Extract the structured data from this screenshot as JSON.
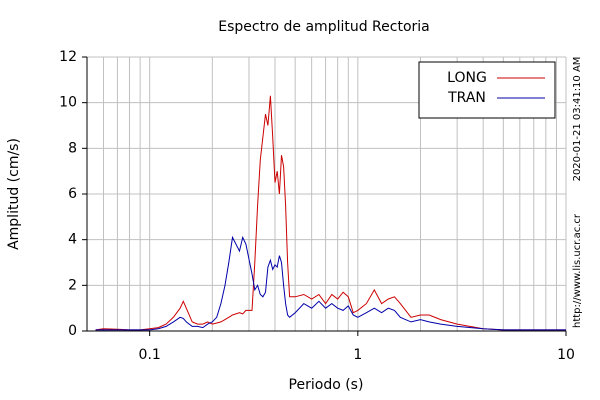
{
  "chart_data": {
    "type": "line",
    "title": "Espectro de amplitud Rectoria",
    "x_label": "Periodo (s)",
    "y_label": "Amplitud (cm/s)",
    "timestamp": "2020-01-21 03:41:10 AM",
    "source": "http://www.lis.ucr.ac.cr",
    "x_log": true,
    "grid": true,
    "legend": "upper right",
    "xlim": [
      0.05,
      10
    ],
    "ylim": [
      0,
      12
    ],
    "xticks": [
      0.1,
      1,
      10
    ],
    "xminor_ticks": [
      0.06,
      0.07,
      0.08,
      0.09,
      0.2,
      0.3,
      0.4,
      0.5,
      0.6,
      0.7,
      0.8,
      0.9,
      2,
      3,
      4,
      5,
      6,
      7,
      8,
      9
    ],
    "yticks": [
      0,
      2,
      4,
      6,
      8,
      10,
      12
    ],
    "x": [
      0.055,
      0.06,
      0.07,
      0.08,
      0.09,
      0.1,
      0.11,
      0.12,
      0.13,
      0.14,
      0.145,
      0.15,
      0.16,
      0.17,
      0.18,
      0.19,
      0.2,
      0.21,
      0.22,
      0.23,
      0.24,
      0.25,
      0.27,
      0.28,
      0.29,
      0.31,
      0.32,
      0.33,
      0.34,
      0.35,
      0.36,
      0.37,
      0.38,
      0.39,
      0.4,
      0.41,
      0.42,
      0.43,
      0.44,
      0.45,
      0.46,
      0.47,
      0.5,
      0.55,
      0.6,
      0.65,
      0.7,
      0.75,
      0.8,
      0.85,
      0.9,
      0.95,
      1.0,
      1.1,
      1.2,
      1.3,
      1.4,
      1.5,
      1.6,
      1.8,
      2.0,
      2.2,
      2.5,
      3,
      4,
      5,
      6,
      8,
      10
    ],
    "series": [
      {
        "name": "LONG",
        "color": "#cc0000",
        "values": [
          0.05,
          0.1,
          0.08,
          0.05,
          0.05,
          0.1,
          0.15,
          0.3,
          0.6,
          1.0,
          1.3,
          1.0,
          0.4,
          0.3,
          0.3,
          0.4,
          0.3,
          0.35,
          0.4,
          0.5,
          0.6,
          0.7,
          0.8,
          0.75,
          0.9,
          0.9,
          3.0,
          5.5,
          7.5,
          8.5,
          9.5,
          9.0,
          10.3,
          8.5,
          6.5,
          7.0,
          6.0,
          7.7,
          7.2,
          5.5,
          3.0,
          1.5,
          1.5,
          1.6,
          1.4,
          1.6,
          1.2,
          1.6,
          1.4,
          1.7,
          1.5,
          0.8,
          0.9,
          1.2,
          1.8,
          1.2,
          1.4,
          1.5,
          1.2,
          0.6,
          0.7,
          0.7,
          0.5,
          0.3,
          0.1,
          0.05,
          0.05,
          0.05,
          0.05
        ]
      },
      {
        "name": "TRAN",
        "color": "#0000aa",
        "values": [
          0.05,
          0.05,
          0.05,
          0.05,
          0.05,
          0.05,
          0.1,
          0.2,
          0.4,
          0.6,
          0.55,
          0.4,
          0.2,
          0.2,
          0.15,
          0.3,
          0.4,
          0.6,
          1.2,
          2.0,
          3.0,
          4.1,
          3.5,
          4.1,
          3.8,
          2.5,
          1.8,
          2.0,
          1.6,
          1.5,
          1.7,
          2.8,
          3.1,
          2.7,
          2.9,
          2.8,
          3.3,
          3.0,
          2.0,
          1.2,
          0.7,
          0.6,
          0.8,
          1.2,
          1.0,
          1.3,
          1.0,
          1.2,
          1.0,
          0.9,
          1.1,
          0.7,
          0.6,
          0.8,
          1.0,
          0.8,
          1.0,
          0.9,
          0.6,
          0.4,
          0.5,
          0.4,
          0.3,
          0.2,
          0.1,
          0.05,
          0.05,
          0.05,
          0.05
        ]
      }
    ]
  }
}
